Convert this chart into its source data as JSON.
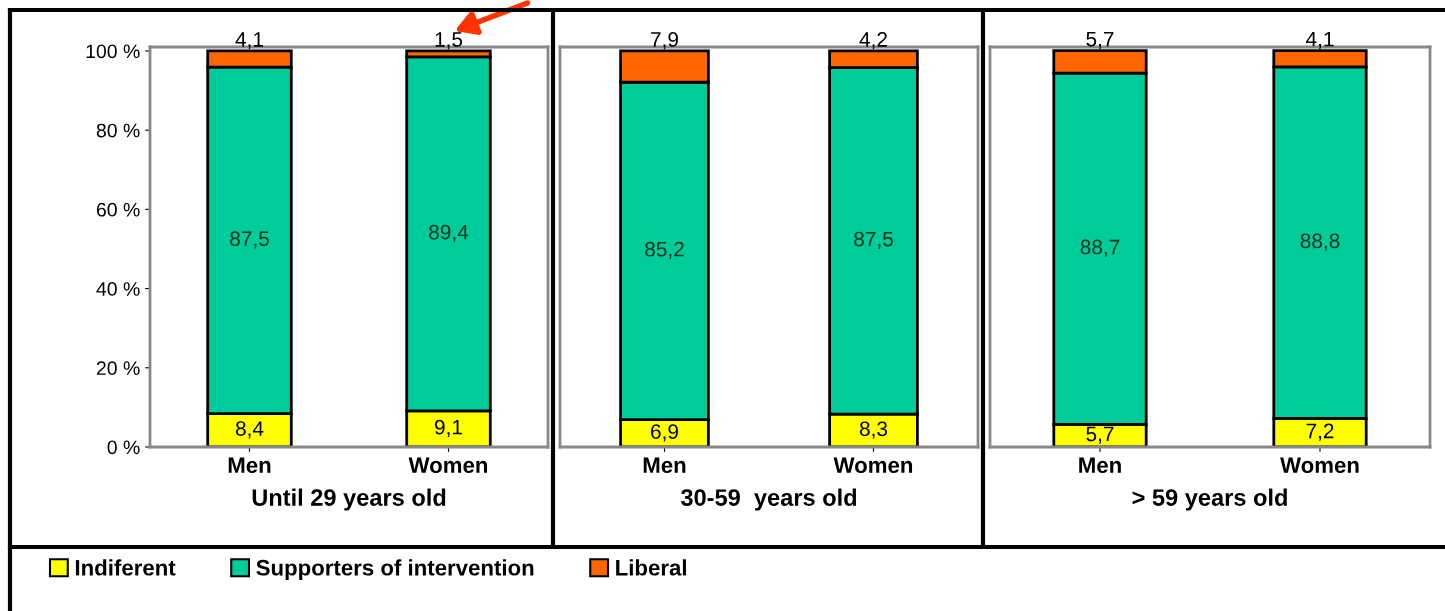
{
  "chart_data": [
    {
      "type": "bar",
      "stacked": true,
      "categories": [
        "Men",
        "Women"
      ],
      "xlabel": "Until 29 years old",
      "legend": "bottom",
      "grid": false,
      "ylim": [
        0,
        101
      ],
      "yticks": [
        {
          "value": 0,
          "label": "0 %"
        },
        {
          "value": 20,
          "label": "20 %"
        },
        {
          "value": 40,
          "label": "40 %"
        },
        {
          "value": 60,
          "label": "60 %"
        },
        {
          "value": 80,
          "label": "80 %"
        },
        {
          "value": 100,
          "label": "100 %"
        }
      ],
      "series": [
        {
          "name": "Indiferent",
          "color": "#ffff00",
          "values": [
            8.4,
            9.1
          ],
          "value_labels": [
            "8,4",
            "9,1"
          ]
        },
        {
          "name": "Supporters of intervention",
          "color": "#00cc99",
          "values": [
            87.5,
            89.4
          ],
          "value_labels": [
            "87,5",
            "89,4"
          ]
        },
        {
          "name": "Liberal",
          "color": "#ff6600",
          "values": [
            4.1,
            1.5
          ],
          "value_labels": [
            "4,1",
            "1,5"
          ]
        }
      ]
    },
    {
      "type": "bar",
      "stacked": true,
      "categories": [
        "Men",
        "Women"
      ],
      "xlabel": "30-59  years old",
      "tick_labels": "x",
      "grid": false,
      "ylim": [
        0,
        101
      ],
      "series": [
        {
          "color": "#ffff00",
          "values": [
            6.9,
            8.3
          ],
          "value_labels": [
            "6,9",
            "8,3"
          ]
        },
        {
          "color": "#00cc99",
          "values": [
            85.2,
            87.5
          ],
          "value_labels": [
            "85,2",
            "87,5"
          ]
        },
        {
          "color": "#ff6600",
          "values": [
            7.9,
            4.2
          ],
          "value_labels": [
            "7,9",
            "4,2"
          ]
        }
      ]
    },
    {
      "type": "bar",
      "stacked": true,
      "categories": [
        "Men",
        "Women"
      ],
      "xlabel": "> 59 years old",
      "tick_labels": "x",
      "grid": false,
      "ylim": [
        0,
        101
      ],
      "series": [
        {
          "color": "#ffff00",
          "values": [
            5.7,
            7.2
          ],
          "value_labels": [
            "5,7",
            "7,2"
          ]
        },
        {
          "color": "#00cc99",
          "values": [
            88.7,
            88.8
          ],
          "value_labels": [
            "88,7",
            "88,8"
          ]
        },
        {
          "color": "#ff6600",
          "values": [
            5.7,
            4.1
          ],
          "value_labels": [
            "5,7",
            "4,1"
          ]
        }
      ]
    }
  ]
}
